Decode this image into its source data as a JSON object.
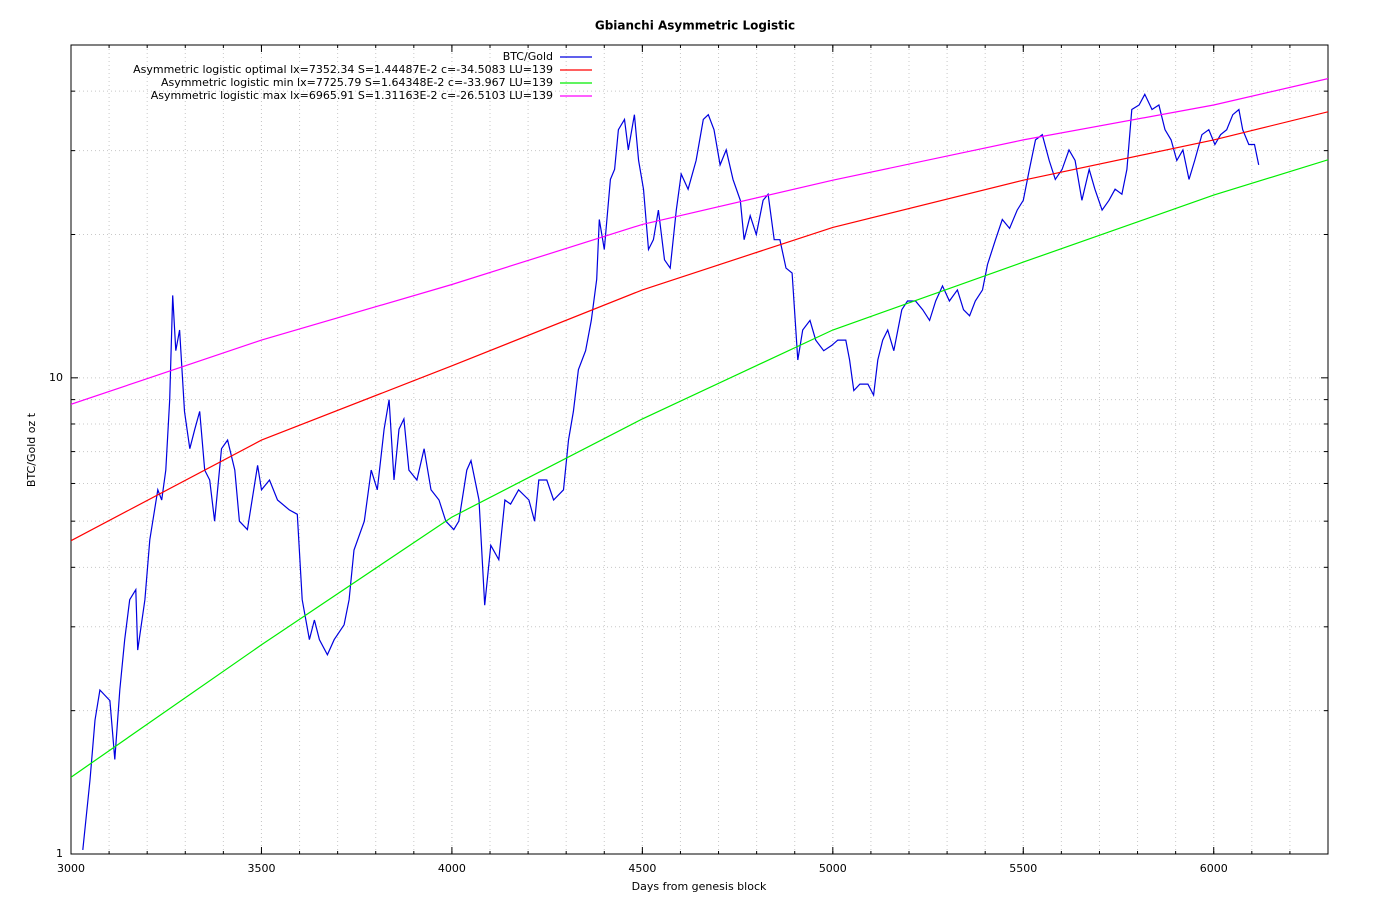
{
  "chart_data": {
    "type": "line",
    "title": "Gbianchi Asymmetric Logistic",
    "xlabel": "Days from genesis block",
    "ylabel": "BTC/Gold oz t",
    "xlim": [
      3000,
      6300
    ],
    "ylim": [
      1,
      50
    ],
    "xticks": [
      3000,
      3500,
      4000,
      4500,
      5000,
      5500,
      6000
    ],
    "yticks": [
      1,
      10
    ],
    "log_y": true,
    "grid": true,
    "legend": "top",
    "series": [
      {
        "name": "BTC/Gold",
        "color": "#0000e0",
        "x": [
          3031,
          3050,
          3063,
          3076,
          3102,
          3115,
          3128,
          3141,
          3154,
          3170,
          3175,
          3194,
          3207,
          3228,
          3238,
          3249,
          3259,
          3267,
          3275,
          3285,
          3298,
          3312,
          3325,
          3338,
          3351,
          3364,
          3377,
          3395,
          3411,
          3430,
          3442,
          3463,
          3490,
          3500,
          3521,
          3542,
          3573,
          3594,
          3607,
          3626,
          3639,
          3652,
          3673,
          3691,
          3717,
          3730,
          3743,
          3770,
          3788,
          3804,
          3822,
          3835,
          3848,
          3861,
          3874,
          3887,
          3908,
          3927,
          3945,
          3966,
          3984,
          4005,
          4018,
          4039,
          4050,
          4071,
          4086,
          4102,
          4123,
          4139,
          4154,
          4175,
          4202,
          4217,
          4228,
          4249,
          4267,
          4293,
          4306,
          4319,
          4332,
          4351,
          4366,
          4380,
          4387,
          4400,
          4416,
          4427,
          4437,
          4453,
          4463,
          4479,
          4490,
          4503,
          4516,
          4529,
          4542,
          4558,
          4573,
          4589,
          4602,
          4620,
          4641,
          4660,
          4673,
          4688,
          4704,
          4720,
          4738,
          4757,
          4767,
          4783,
          4799,
          4817,
          4830,
          4846,
          4861,
          4877,
          4893,
          4908,
          4921,
          4940,
          4955,
          4976,
          4997,
          5013,
          5034,
          5044,
          5055,
          5071,
          5092,
          5107,
          5118,
          5131,
          5144,
          5160,
          5181,
          5196,
          5217,
          5236,
          5254,
          5270,
          5288,
          5306,
          5327,
          5343,
          5359,
          5374,
          5393,
          5406,
          5427,
          5445,
          5464,
          5484,
          5500,
          5516,
          5532,
          5550,
          5568,
          5584,
          5602,
          5620,
          5636,
          5654,
          5673,
          5688,
          5707,
          5725,
          5741,
          5759,
          5772,
          5785,
          5804,
          5819,
          5838,
          5856,
          5872,
          5888,
          5903,
          5919,
          5935,
          5950,
          5969,
          5987,
          6003,
          6018,
          6034,
          6050,
          6066,
          6076,
          6092,
          6107,
          6118
        ],
        "values": [
          1.02,
          1.43,
          1.91,
          2.21,
          2.1,
          1.58,
          2.21,
          2.82,
          3.42,
          3.59,
          2.68,
          3.42,
          4.57,
          5.82,
          5.54,
          6.4,
          9.0,
          14.9,
          11.4,
          12.6,
          8.5,
          7.1,
          7.8,
          8.5,
          6.4,
          6.1,
          5.0,
          7.1,
          7.4,
          6.4,
          5.0,
          4.8,
          6.55,
          5.82,
          6.1,
          5.54,
          5.28,
          5.17,
          3.42,
          2.82,
          3.1,
          2.82,
          2.62,
          2.82,
          3.03,
          3.42,
          4.35,
          5.0,
          6.4,
          5.82,
          7.8,
          9.0,
          6.1,
          7.8,
          8.2,
          6.4,
          6.1,
          7.1,
          5.82,
          5.54,
          5.0,
          4.8,
          5.0,
          6.4,
          6.7,
          5.54,
          3.33,
          4.45,
          4.15,
          5.54,
          5.43,
          5.82,
          5.54,
          5.0,
          6.1,
          6.1,
          5.54,
          5.82,
          7.4,
          8.5,
          10.4,
          11.4,
          13.2,
          16.1,
          21.5,
          18.6,
          26.1,
          27.4,
          33.2,
          34.9,
          30.1,
          35.7,
          28.6,
          24.9,
          18.6,
          19.5,
          22.5,
          17.7,
          17.0,
          22.5,
          26.8,
          24.9,
          28.6,
          34.9,
          35.7,
          33.2,
          28.0,
          30.1,
          26.1,
          23.6,
          19.5,
          21.9,
          20.0,
          23.6,
          24.3,
          19.5,
          19.5,
          17.0,
          16.6,
          10.9,
          12.6,
          13.2,
          12.0,
          11.4,
          11.7,
          12.0,
          12.0,
          10.9,
          9.4,
          9.7,
          9.7,
          9.2,
          10.9,
          12.0,
          12.6,
          11.4,
          13.9,
          14.5,
          14.5,
          13.9,
          13.2,
          14.5,
          15.6,
          14.5,
          15.3,
          13.9,
          13.5,
          14.5,
          15.3,
          17.3,
          19.5,
          21.5,
          20.6,
          22.5,
          23.6,
          27.4,
          31.6,
          32.4,
          28.6,
          26.1,
          27.4,
          30.1,
          28.6,
          23.6,
          27.4,
          24.9,
          22.5,
          23.6,
          24.9,
          24.3,
          27.4,
          36.6,
          37.4,
          39.4,
          36.6,
          37.4,
          33.2,
          31.6,
          28.6,
          30.1,
          26.1,
          28.6,
          32.4,
          33.2,
          30.9,
          32.4,
          33.2,
          35.7,
          36.6,
          33.2,
          30.9,
          30.9,
          28.0
        ]
      },
      {
        "name": "Asymmetric logistic optimal lx=7352.34 S=1.44487E-2 c=-34.5083 LU=139",
        "color": "#ff0000",
        "x": [
          3000,
          3500,
          4000,
          4500,
          5000,
          5500,
          6000,
          6300
        ],
        "values": [
          4.55,
          7.4,
          10.6,
          15.3,
          20.7,
          26,
          31.6,
          36.2
        ]
      },
      {
        "name": "Asymmetric logistic min lx=7725.79 S=1.64348E-2 c=-33.967 LU=139",
        "color": "#00ee00",
        "x": [
          3000,
          3500,
          4000,
          4500,
          5000,
          5500,
          6000,
          6300
        ],
        "values": [
          1.45,
          2.75,
          5.1,
          8.2,
          12.6,
          17.5,
          24.2,
          28.7
        ]
      },
      {
        "name": "Asymmetric logistic max lx=6965.91 S=1.31163E-2 c=-26.5103 LU=139",
        "color": "#ff00ff",
        "x": [
          3000,
          3500,
          4000,
          4500,
          5000,
          5500,
          6000,
          6300
        ],
        "values": [
          8.8,
          12,
          15.7,
          21,
          26,
          31.6,
          37.4,
          42.5
        ]
      }
    ]
  }
}
